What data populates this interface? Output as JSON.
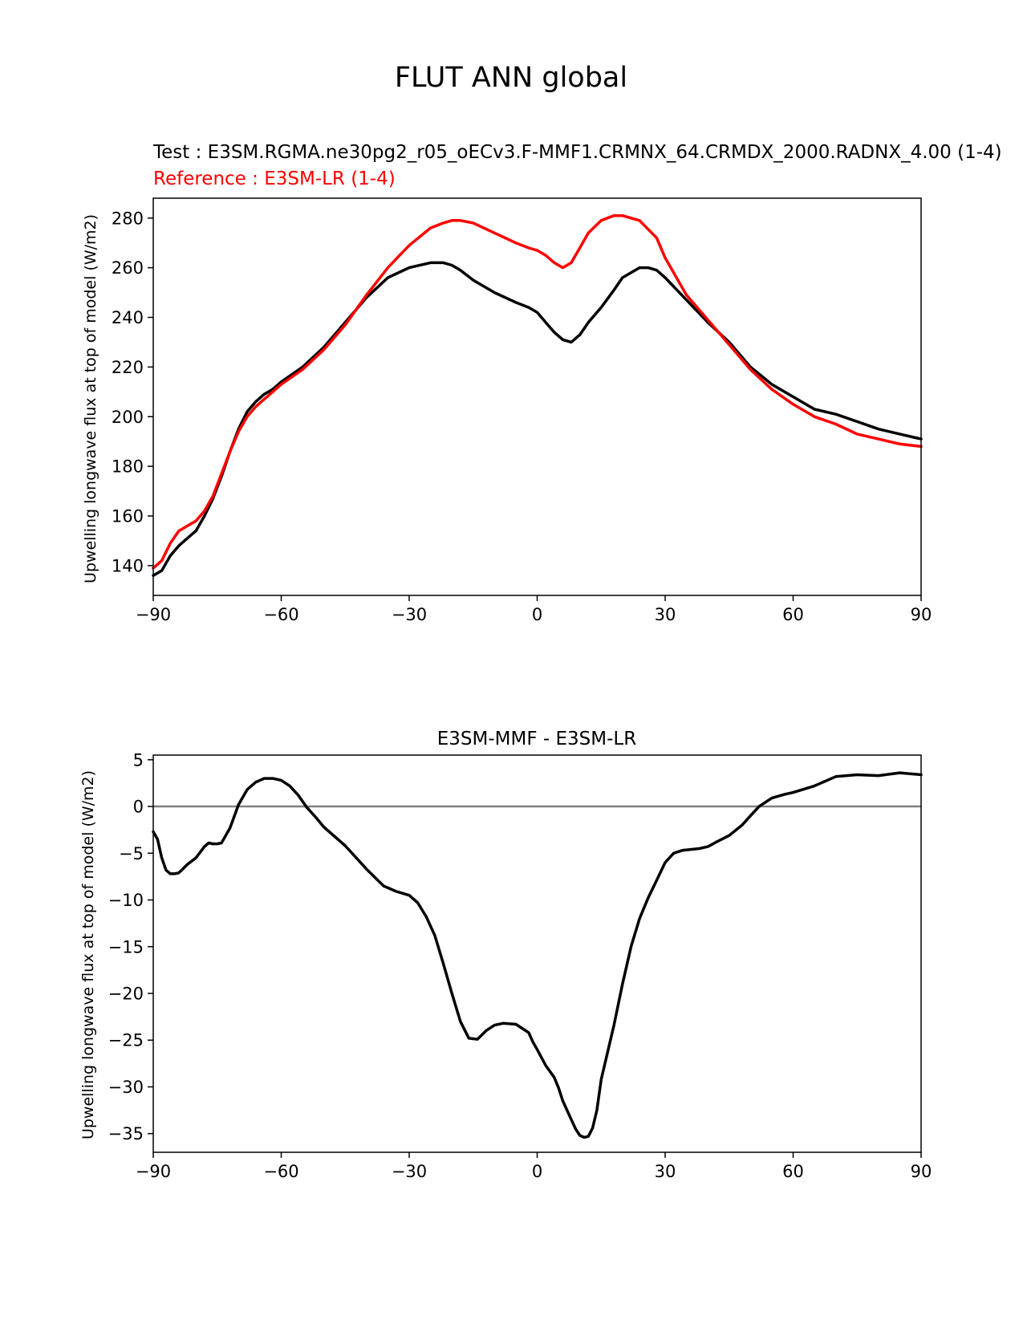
{
  "figure_title": "FLUT ANN global",
  "colors": {
    "test": "#000000",
    "reference": "#ff0000",
    "zero_line": "#808080"
  },
  "chart_data": [
    {
      "type": "line",
      "test_label": "Test : E3SM.RGMA.ne30pg2_r05_oECv3.F-MMF1.CRMNX_64.CRMDX_2000.RADNX_4.00 (1-4)",
      "reference_label": "Reference : E3SM-LR (1-4)",
      "xlabel": "",
      "ylabel": "Upwelling longwave flux at top of model (W/m2)",
      "xlim": [
        -90,
        90
      ],
      "ylim": [
        128,
        288
      ],
      "xticks": [
        -90,
        -60,
        -30,
        0,
        30,
        60,
        90
      ],
      "xtick_labels": [
        "−90",
        "−60",
        "−30",
        "0",
        "30",
        "60",
        "90"
      ],
      "yticks": [
        140,
        160,
        180,
        200,
        220,
        240,
        260,
        280
      ],
      "ytick_labels": [
        "140",
        "160",
        "180",
        "200",
        "220",
        "240",
        "260",
        "280"
      ],
      "series": [
        {
          "name": "test",
          "x": [
            -90,
            -88,
            -86,
            -84,
            -82,
            -80,
            -78,
            -76,
            -74,
            -72,
            -70,
            -68,
            -66,
            -64,
            -62,
            -60,
            -55,
            -50,
            -45,
            -40,
            -35,
            -30,
            -25,
            -22,
            -20,
            -18,
            -15,
            -10,
            -5,
            0,
            -2,
            2,
            4,
            6,
            8,
            10,
            12,
            15,
            18,
            20,
            24,
            26,
            28,
            30,
            35,
            40,
            45,
            50,
            55,
            60,
            65,
            70,
            75,
            80,
            85,
            90
          ],
          "y": [
            136,
            138,
            144,
            148,
            151,
            154,
            160,
            167,
            176,
            186,
            195,
            202,
            206,
            209,
            211,
            214,
            220,
            228,
            238,
            248,
            256,
            260,
            262,
            262,
            261,
            259,
            255,
            250,
            246,
            242,
            244,
            238,
            234,
            231,
            230,
            233,
            238,
            244,
            251,
            256,
            260,
            260,
            259,
            256,
            247,
            238,
            230,
            220,
            213,
            208,
            203,
            201,
            198,
            195,
            193,
            191
          ]
        },
        {
          "name": "reference",
          "x": [
            -90,
            -88,
            -86,
            -84,
            -82,
            -80,
            -78,
            -76,
            -74,
            -72,
            -70,
            -68,
            -66,
            -64,
            -62,
            -60,
            -55,
            -50,
            -45,
            -40,
            -35,
            -30,
            -25,
            -22,
            -20,
            -18,
            -15,
            -10,
            -5,
            -2,
            0,
            2,
            4,
            6,
            8,
            10,
            12,
            15,
            18,
            20,
            24,
            28,
            30,
            35,
            40,
            45,
            50,
            55,
            60,
            65,
            70,
            75,
            80,
            85,
            90
          ],
          "y": [
            139,
            142,
            149,
            154,
            156,
            158,
            162,
            168,
            177,
            186,
            194,
            200,
            204,
            207,
            210,
            213,
            219,
            227,
            237,
            249,
            260,
            269,
            276,
            278,
            279,
            279,
            278,
            274,
            270,
            268,
            267,
            265,
            262,
            260,
            262,
            268,
            274,
            279,
            281,
            281,
            279,
            272,
            264,
            249,
            239,
            229,
            219,
            211,
            205,
            200,
            197,
            193,
            191,
            189,
            188
          ]
        }
      ]
    },
    {
      "type": "line",
      "title": "E3SM-MMF - E3SM-LR",
      "xlabel": "",
      "ylabel": "Upwelling longwave flux at top of model (W/m2)",
      "xlim": [
        -90,
        90
      ],
      "ylim": [
        -37,
        5.5
      ],
      "xticks": [
        -90,
        -60,
        -30,
        0,
        30,
        60,
        90
      ],
      "xtick_labels": [
        "−90",
        "−60",
        "−30",
        "0",
        "30",
        "60",
        "90"
      ],
      "yticks": [
        5,
        0,
        -5,
        -10,
        -15,
        -20,
        -25,
        -30,
        -35
      ],
      "ytick_labels": [
        "5",
        "0",
        "−5",
        "−10",
        "−15",
        "−20",
        "−25",
        "−30",
        "−35"
      ],
      "zero_line": 0,
      "series": [
        {
          "name": "difference",
          "x": [
            -90,
            -89,
            -88,
            -87,
            -86,
            -85,
            -84,
            -82,
            -80,
            -78,
            -77,
            -76,
            -75,
            -74,
            -72,
            -70,
            -68,
            -66,
            -64,
            -62,
            -60,
            -58,
            -56,
            -54,
            -52,
            -50,
            -48,
            -45,
            -40,
            -36,
            -33,
            -30,
            -28,
            -26,
            -24,
            -22,
            -20,
            -18,
            -16,
            -14,
            -12,
            -10,
            -8,
            -5,
            -2,
            -1,
            0,
            2,
            4,
            5,
            6,
            8,
            9,
            10,
            11,
            12,
            13,
            14,
            15,
            18,
            20,
            22,
            24,
            26,
            28,
            30,
            32,
            34,
            36,
            38,
            40,
            42,
            45,
            48,
            50,
            52,
            55,
            58,
            60,
            65,
            70,
            75,
            80,
            85,
            90
          ],
          "y": [
            -2.7,
            -3.5,
            -5.5,
            -6.8,
            -7.2,
            -7.2,
            -7.1,
            -6.2,
            -5.5,
            -4.3,
            -3.9,
            -4.0,
            -4.0,
            -3.9,
            -2.3,
            0.2,
            1.8,
            2.6,
            3.0,
            3.0,
            2.8,
            2.2,
            1.2,
            -0.1,
            -1.1,
            -2.2,
            -3.0,
            -4.2,
            -6.7,
            -8.5,
            -9.1,
            -9.5,
            -10.3,
            -11.8,
            -13.8,
            -16.8,
            -20.0,
            -23.0,
            -24.8,
            -24.9,
            -24.0,
            -23.4,
            -23.2,
            -23.3,
            -24.2,
            -25.2,
            -26.0,
            -27.7,
            -29.0,
            -30.1,
            -31.5,
            -33.5,
            -34.5,
            -35.2,
            -35.4,
            -35.3,
            -34.4,
            -32.5,
            -29.2,
            -23.4,
            -19.0,
            -15.0,
            -12.0,
            -9.8,
            -7.9,
            -6.0,
            -5.0,
            -4.7,
            -4.6,
            -4.5,
            -4.3,
            -3.8,
            -3.1,
            -2.0,
            -1.0,
            0.0,
            0.9,
            1.3,
            1.5,
            2.2,
            3.2,
            3.4,
            3.3,
            3.6,
            3.4
          ]
        }
      ]
    }
  ]
}
